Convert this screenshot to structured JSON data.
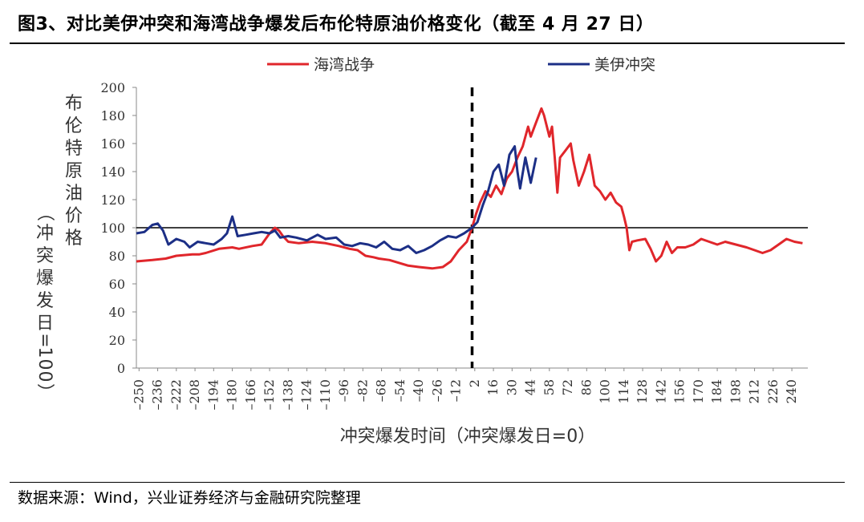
{
  "figure_title": "图3、对比美伊冲突和海湾战争爆发后布伦特原油价格变化（截至 4 月 27 日）",
  "source": "数据来源：Wind，兴业证券经济与金融研究院整理",
  "chart_data": {
    "type": "line",
    "xlabel": "冲突爆发时间（冲突爆发日=0）",
    "ylabel": "布伦特原油价格（冲突爆发日=100）",
    "xlim": [
      -252,
      252
    ],
    "ylim": [
      0,
      200
    ],
    "yticks": [
      0,
      20,
      40,
      60,
      80,
      100,
      120,
      140,
      160,
      180,
      200
    ],
    "xtick_labels": [
      "-250",
      "-236",
      "-222",
      "-208",
      "-194",
      "-180",
      "-166",
      "-152",
      "-138",
      "-124",
      "-110",
      "-96",
      "-82",
      "-68",
      "-54",
      "-40",
      "-26",
      "-12",
      "2",
      "16",
      "30",
      "44",
      "58",
      "72",
      "86",
      "100",
      "114",
      "128",
      "142",
      "156",
      "170",
      "184",
      "198",
      "212",
      "226",
      "240"
    ],
    "reference_line": {
      "y": 100,
      "color": "#000000"
    },
    "event_line": {
      "x": 0,
      "style": "dashed",
      "color": "#000000"
    },
    "legend_position": "top-center",
    "series": [
      {
        "name": "海湾战争",
        "color": "#e0262b",
        "points": [
          [
            -252,
            76
          ],
          [
            -240,
            77
          ],
          [
            -230,
            78
          ],
          [
            -222,
            80
          ],
          [
            -210,
            81
          ],
          [
            -205,
            81
          ],
          [
            -200,
            82
          ],
          [
            -190,
            85
          ],
          [
            -180,
            86
          ],
          [
            -175,
            85
          ],
          [
            -165,
            87
          ],
          [
            -158,
            88
          ],
          [
            -152,
            96
          ],
          [
            -148,
            100
          ],
          [
            -145,
            98
          ],
          [
            -142,
            94
          ],
          [
            -138,
            90
          ],
          [
            -130,
            89
          ],
          [
            -120,
            90
          ],
          [
            -110,
            89
          ],
          [
            -100,
            87
          ],
          [
            -92,
            85
          ],
          [
            -86,
            84
          ],
          [
            -80,
            80
          ],
          [
            -74,
            79
          ],
          [
            -70,
            78
          ],
          [
            -62,
            77
          ],
          [
            -55,
            75
          ],
          [
            -48,
            73
          ],
          [
            -40,
            72
          ],
          [
            -30,
            71
          ],
          [
            -22,
            72
          ],
          [
            -16,
            76
          ],
          [
            -10,
            84
          ],
          [
            -4,
            90
          ],
          [
            0,
            100
          ],
          [
            3,
            110
          ],
          [
            6,
            118
          ],
          [
            10,
            126
          ],
          [
            14,
            122
          ],
          [
            18,
            130
          ],
          [
            22,
            124
          ],
          [
            26,
            135
          ],
          [
            30,
            140
          ],
          [
            34,
            150
          ],
          [
            38,
            158
          ],
          [
            42,
            172
          ],
          [
            44,
            165
          ],
          [
            48,
            175
          ],
          [
            52,
            185
          ],
          [
            54,
            180
          ],
          [
            58,
            165
          ],
          [
            60,
            172
          ],
          [
            62,
            150
          ],
          [
            64,
            125
          ],
          [
            66,
            150
          ],
          [
            70,
            155
          ],
          [
            74,
            160
          ],
          [
            76,
            148
          ],
          [
            80,
            130
          ],
          [
            84,
            140
          ],
          [
            88,
            152
          ],
          [
            92,
            130
          ],
          [
            96,
            126
          ],
          [
            100,
            120
          ],
          [
            104,
            125
          ],
          [
            108,
            118
          ],
          [
            112,
            115
          ],
          [
            114,
            108
          ],
          [
            116,
            100
          ],
          [
            118,
            84
          ],
          [
            120,
            90
          ],
          [
            124,
            91
          ],
          [
            130,
            92
          ],
          [
            134,
            85
          ],
          [
            138,
            76
          ],
          [
            142,
            80
          ],
          [
            146,
            90
          ],
          [
            150,
            82
          ],
          [
            154,
            86
          ],
          [
            160,
            86
          ],
          [
            166,
            88
          ],
          [
            172,
            92
          ],
          [
            178,
            90
          ],
          [
            184,
            88
          ],
          [
            190,
            90
          ],
          [
            198,
            88
          ],
          [
            206,
            86
          ],
          [
            212,
            84
          ],
          [
            218,
            82
          ],
          [
            224,
            84
          ],
          [
            230,
            88
          ],
          [
            236,
            92
          ],
          [
            242,
            90
          ],
          [
            248,
            89
          ]
        ]
      },
      {
        "name": "美伊冲突",
        "color": "#1c2f86",
        "points": [
          [
            -252,
            96
          ],
          [
            -246,
            97
          ],
          [
            -240,
            102
          ],
          [
            -236,
            103
          ],
          [
            -232,
            98
          ],
          [
            -228,
            88
          ],
          [
            -222,
            92
          ],
          [
            -216,
            90
          ],
          [
            -212,
            86
          ],
          [
            -206,
            90
          ],
          [
            -200,
            89
          ],
          [
            -194,
            88
          ],
          [
            -188,
            92
          ],
          [
            -184,
            96
          ],
          [
            -180,
            108
          ],
          [
            -176,
            94
          ],
          [
            -170,
            95
          ],
          [
            -164,
            96
          ],
          [
            -158,
            97
          ],
          [
            -152,
            96
          ],
          [
            -148,
            98
          ],
          [
            -144,
            93
          ],
          [
            -138,
            94
          ],
          [
            -132,
            93
          ],
          [
            -124,
            91
          ],
          [
            -116,
            95
          ],
          [
            -110,
            92
          ],
          [
            -102,
            93
          ],
          [
            -96,
            88
          ],
          [
            -90,
            87
          ],
          [
            -84,
            89
          ],
          [
            -78,
            88
          ],
          [
            -72,
            86
          ],
          [
            -66,
            90
          ],
          [
            -60,
            85
          ],
          [
            -54,
            84
          ],
          [
            -48,
            87
          ],
          [
            -42,
            82
          ],
          [
            -36,
            84
          ],
          [
            -30,
            87
          ],
          [
            -24,
            91
          ],
          [
            -18,
            94
          ],
          [
            -12,
            93
          ],
          [
            -6,
            96
          ],
          [
            0,
            100
          ],
          [
            4,
            104
          ],
          [
            8,
            116
          ],
          [
            12,
            126
          ],
          [
            16,
            140
          ],
          [
            20,
            145
          ],
          [
            24,
            130
          ],
          [
            28,
            152
          ],
          [
            32,
            158
          ],
          [
            34,
            140
          ],
          [
            36,
            128
          ],
          [
            40,
            150
          ],
          [
            44,
            132
          ],
          [
            48,
            150
          ]
        ]
      }
    ]
  }
}
